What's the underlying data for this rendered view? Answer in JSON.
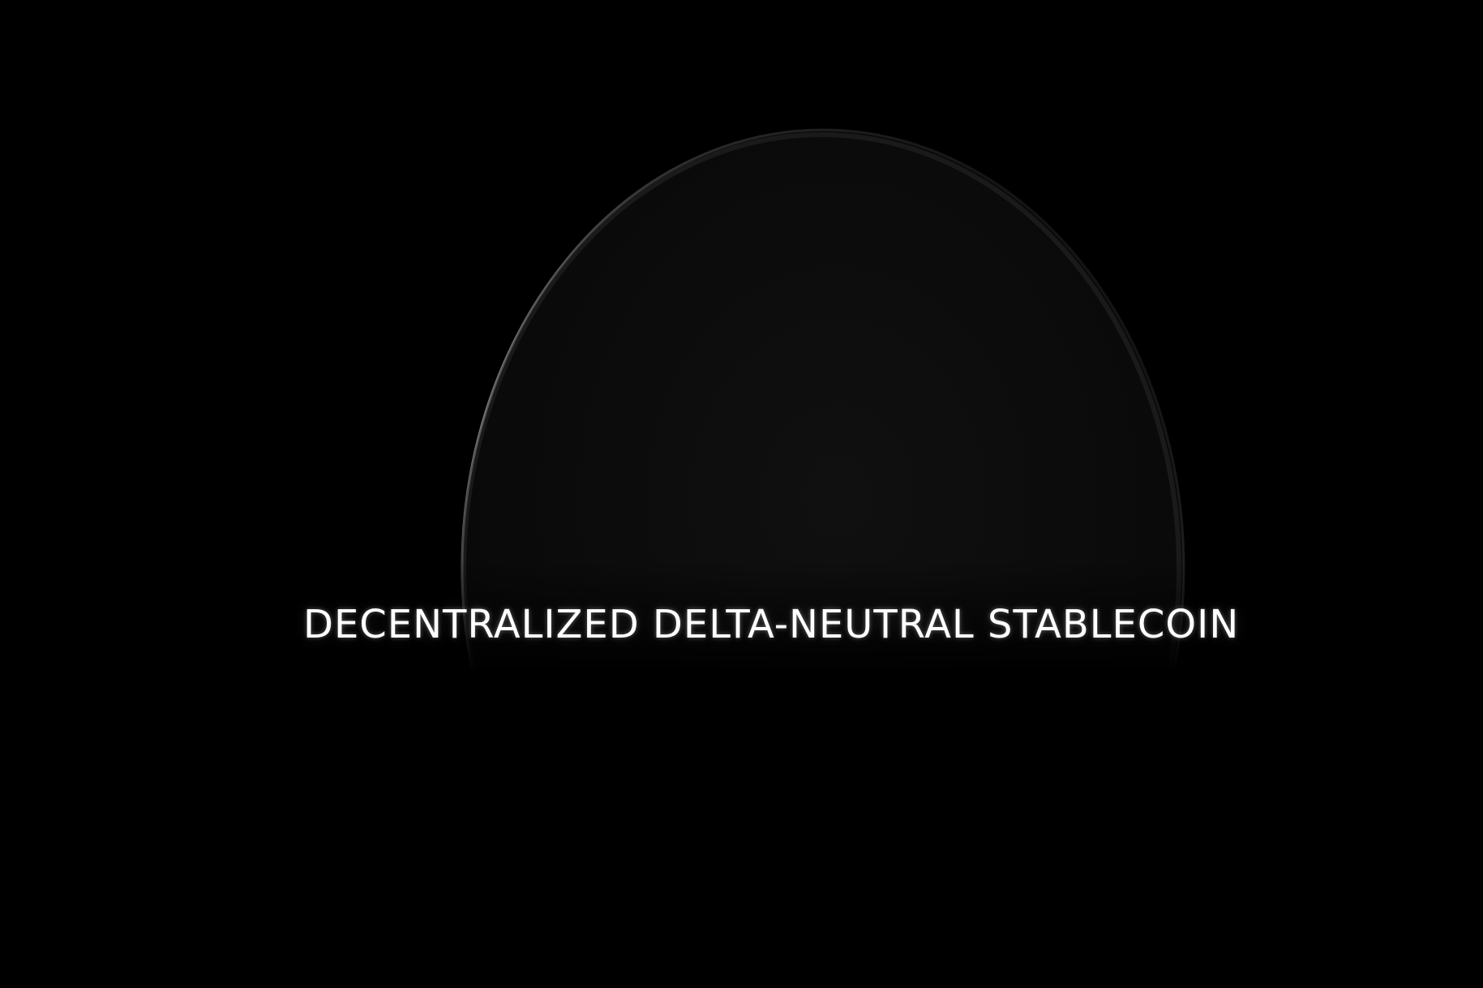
{
  "hero": {
    "tagline": "DECENTRALIZED DELTA-NEUTRAL STABLECOIN"
  },
  "colors": {
    "background": "#000000",
    "sphere_fill": "#0b0b0b",
    "rim_highlight": "#8a8a8a",
    "text": "#ffffff"
  }
}
